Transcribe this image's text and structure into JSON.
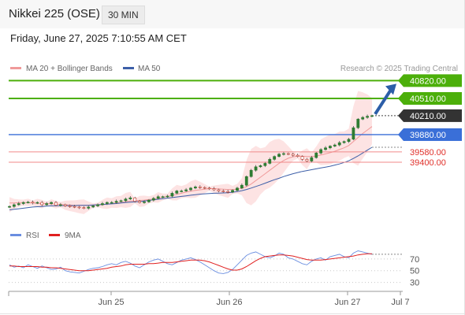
{
  "header": {
    "symbol": "Nikkei 225 (OSE)",
    "timeframe": "30 MIN",
    "datetime": "Friday, June 27, 2025 7:10:55 AM CET"
  },
  "colors": {
    "resistance": "#4caf0a",
    "pivot": "#3a6fd8",
    "support": "#f08a8a",
    "support_text": "#e0302a",
    "price": "#2e7d32",
    "ma20": "#f09a9a",
    "bollinger_fill": "#fde3e3",
    "ma50": "#3d5fa8",
    "rsi": "#6a8ee0",
    "rsi_ma": "#e02020",
    "arrow": "#2c5ea8",
    "last_price_box": "#333333"
  },
  "chart_data": [
    {
      "type": "line",
      "title": "",
      "legend": [
        "MA 20 + Bollinger Bands",
        "MA 50"
      ],
      "legend_placement": "top-left",
      "watermark": "Research © 2025 Trading Central",
      "x_tick_labels": [
        "Jun 25",
        "Jun 26",
        "Jun 27",
        "Jul 7"
      ],
      "ylim": [
        38550,
        40880
      ],
      "levels": [
        {
          "label": "40820.00",
          "value": 40820,
          "kind": "resistance"
        },
        {
          "label": "40510.00",
          "value": 40510,
          "kind": "resistance"
        },
        {
          "label": "40210.00",
          "value": 40210,
          "kind": "last"
        },
        {
          "label": "39880.00",
          "value": 39880,
          "kind": "pivot"
        },
        {
          "label": "39580.00",
          "value": 39580,
          "kind": "support"
        },
        {
          "label": "39400.00",
          "value": 39400,
          "kind": "support"
        }
      ],
      "series": [
        {
          "name": "Price",
          "type": "candlestick",
          "values": [
            38630,
            38660,
            38680,
            38700,
            38705,
            38690,
            38700,
            38660,
            38680,
            38700,
            38650,
            38660,
            38640,
            38630,
            38620,
            38610,
            38600,
            38620,
            38640,
            38660,
            38680,
            38700,
            38700,
            38720,
            38730,
            38760,
            38780,
            38720,
            38700,
            38710,
            38740,
            38770,
            38800,
            38800,
            38810,
            38860,
            38900,
            38900,
            38920,
            38950,
            38970,
            38960,
            38950,
            38940,
            38920,
            38900,
            38890,
            38880,
            38910,
            38950,
            39000,
            39150,
            39260,
            39320,
            39340,
            39380,
            39450,
            39500,
            39540,
            39550,
            39540,
            39520,
            39500,
            39450,
            39420,
            39480,
            39560,
            39620,
            39650,
            39680,
            39700,
            39740,
            39760,
            39800,
            40000,
            40150,
            40180,
            40200,
            40210
          ]
        },
        {
          "name": "MA 20",
          "type": "line",
          "values": [
            38690,
            38690,
            38695,
            38695,
            38695,
            38690,
            38685,
            38680,
            38680,
            38675,
            38670,
            38665,
            38660,
            38655,
            38650,
            38650,
            38648,
            38648,
            38650,
            38655,
            38660,
            38670,
            38680,
            38690,
            38700,
            38710,
            38725,
            38730,
            38735,
            38740,
            38750,
            38760,
            38775,
            38790,
            38805,
            38820,
            38840,
            38860,
            38880,
            38895,
            38910,
            38920,
            38930,
            38940,
            38940,
            38935,
            38930,
            38925,
            38925,
            38930,
            38945,
            38975,
            39020,
            39080,
            39140,
            39200,
            39260,
            39320,
            39380,
            39430,
            39470,
            39495,
            39505,
            39505,
            39500,
            39500,
            39510,
            39525,
            39545,
            39565,
            39590,
            39620,
            39650,
            39690,
            39760,
            39830,
            39900,
            39960,
            40020
          ]
        },
        {
          "name": "MA 50",
          "type": "line",
          "values": [
            38570,
            38580,
            38590,
            38600,
            38610,
            38620,
            38625,
            38630,
            38635,
            38640,
            38640,
            38645,
            38645,
            38645,
            38645,
            38650,
            38650,
            38650,
            38655,
            38660,
            38665,
            38670,
            38675,
            38680,
            38690,
            38700,
            38705,
            38710,
            38715,
            38725,
            38735,
            38745,
            38755,
            38765,
            38775,
            38785,
            38795,
            38805,
            38815,
            38825,
            38835,
            38845,
            38850,
            38855,
            38860,
            38862,
            38865,
            38870,
            38878,
            38890,
            38905,
            38925,
            38950,
            38978,
            39005,
            39035,
            39065,
            39095,
            39120,
            39150,
            39175,
            39200,
            39220,
            39240,
            39255,
            39270,
            39285,
            39300,
            39315,
            39330,
            39350,
            39370,
            39395,
            39425,
            39465,
            39510,
            39560,
            39610,
            39660
          ]
        }
      ]
    },
    {
      "type": "line",
      "title": "",
      "legend": [
        "RSI",
        "9MA"
      ],
      "legend_placement": "top-left",
      "ylim": [
        20,
        90
      ],
      "y_ticks": [
        30,
        50,
        70
      ],
      "series": [
        {
          "name": "RSI",
          "type": "line",
          "values": [
            60,
            56,
            58,
            55,
            60,
            57,
            54,
            58,
            55,
            52,
            53,
            56,
            50,
            48,
            47,
            46,
            49,
            52,
            54,
            55,
            57,
            60,
            62,
            60,
            64,
            66,
            63,
            58,
            55,
            60,
            65,
            68,
            70,
            66,
            62,
            60,
            64,
            68,
            70,
            72,
            69,
            65,
            60,
            55,
            50,
            46,
            45,
            47,
            52,
            60,
            68,
            76,
            80,
            82,
            78,
            74,
            72,
            75,
            80,
            78,
            72,
            70,
            66,
            62,
            60,
            66,
            70,
            72,
            68,
            74,
            76,
            78,
            74,
            72,
            80,
            84,
            82,
            80,
            78
          ]
        },
        {
          "name": "9MA",
          "type": "line",
          "values": [
            58,
            58,
            57,
            57,
            57,
            57,
            57,
            56,
            56,
            55,
            55,
            54,
            53,
            52,
            51,
            50,
            50,
            50,
            51,
            52,
            53,
            54,
            56,
            57,
            58,
            60,
            61,
            61,
            61,
            61,
            62,
            62,
            63,
            64,
            64,
            64,
            65,
            66,
            67,
            68,
            68,
            68,
            67,
            65,
            62,
            59,
            56,
            53,
            51,
            51,
            53,
            57,
            62,
            67,
            71,
            74,
            75,
            76,
            77,
            77,
            76,
            75,
            73,
            71,
            69,
            68,
            68,
            68,
            69,
            70,
            71,
            72,
            73,
            74,
            75,
            77,
            78,
            79,
            79
          ]
        }
      ]
    }
  ]
}
